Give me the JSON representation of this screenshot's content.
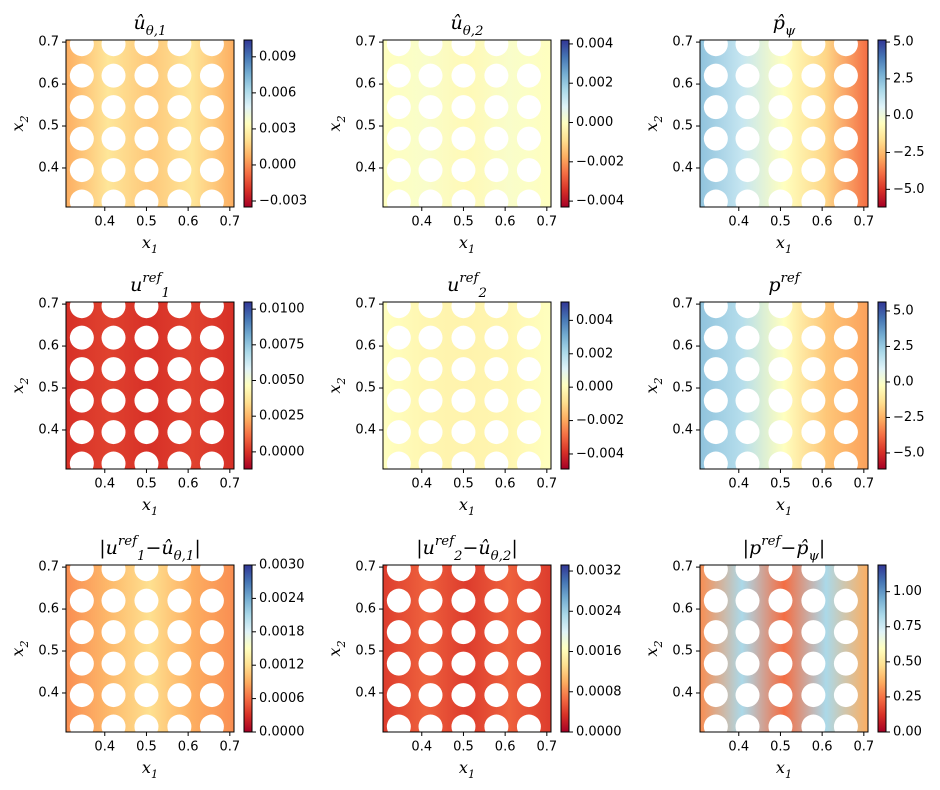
{
  "chart_data": [
    {
      "type": "heatmap",
      "colormap": "RdYlBu",
      "title": [
        {
          "text": "û"
        },
        {
          "text": "θ,1",
          "style": "sub"
        }
      ],
      "xlabel": [
        {
          "text": "x"
        },
        {
          "text": "1",
          "style": "sub"
        }
      ],
      "ylabel": [
        {
          "text": "x"
        },
        {
          "text": "2",
          "style": "sub"
        }
      ],
      "xlim": [
        0.307,
        0.71
      ],
      "ylim": [
        0.307,
        0.705
      ],
      "xticks": [
        0.4,
        0.5,
        0.6,
        0.7
      ],
      "yticks": [
        0.4,
        0.5,
        0.6,
        0.7
      ],
      "clim": [
        -0.0035,
        0.0104
      ],
      "cticks": [
        {
          "value": -0.003,
          "label": "−0.003"
        },
        {
          "value": 0,
          "label": "0.000"
        },
        0.003,
        0.006,
        0.009
      ]
    },
    {
      "type": "heatmap",
      "colormap": "RdYlBu",
      "title": [
        {
          "text": "û"
        },
        {
          "text": "θ,2",
          "style": "sub"
        }
      ],
      "xlabel": [
        {
          "text": "x"
        },
        {
          "text": "1",
          "style": "sub"
        }
      ],
      "ylabel": [
        {
          "text": "x"
        },
        {
          "text": "2",
          "style": "sub"
        }
      ],
      "xlim": [
        0.307,
        0.71
      ],
      "ylim": [
        0.307,
        0.705
      ],
      "xticks": [
        0.4,
        0.5,
        0.6,
        0.7
      ],
      "yticks": [
        0.4,
        0.5,
        0.6,
        0.7
      ],
      "clim": [
        -0.0043,
        0.0042
      ],
      "cticks": [
        {
          "value": -0.004,
          "label": "−0.004"
        },
        {
          "value": -0.002,
          "label": "−0.002"
        },
        {
          "value": 0,
          "label": "0.000"
        },
        0.002,
        0.004
      ]
    },
    {
      "type": "heatmap",
      "colormap": "RdYlBu",
      "title": [
        {
          "text": "p̂"
        },
        {
          "text": "ψ",
          "style": "sub"
        }
      ],
      "xlabel": [
        {
          "text": "x"
        },
        {
          "text": "1",
          "style": "sub"
        }
      ],
      "ylabel": [
        {
          "text": "x"
        },
        {
          "text": "2",
          "style": "sub"
        }
      ],
      "xlim": [
        0.307,
        0.71
      ],
      "ylim": [
        0.307,
        0.705
      ],
      "xticks": [
        0.4,
        0.5,
        0.6,
        0.7
      ],
      "yticks": [
        0.4,
        0.5,
        0.6,
        0.7
      ],
      "clim": [
        -6.2,
        5.14
      ],
      "cticks": [
        {
          "value": -5,
          "label": "−5.0"
        },
        {
          "value": -2.5,
          "label": "−2.5"
        },
        {
          "value": 0,
          "label": "0.0"
        },
        2.5,
        {
          "value": 5,
          "label": "5.0"
        }
      ]
    },
    {
      "type": "heatmap",
      "colormap": "RdYlBu",
      "title": [
        {
          "text": "u"
        },
        {
          "text": "ref",
          "style": "super"
        },
        {
          "text": "1",
          "style": "sub"
        }
      ],
      "xlabel": [
        {
          "text": "x"
        },
        {
          "text": "1",
          "style": "sub"
        }
      ],
      "ylabel": [
        {
          "text": "x"
        },
        {
          "text": "2",
          "style": "sub"
        }
      ],
      "xlim": [
        0.307,
        0.71
      ],
      "ylim": [
        0.307,
        0.705
      ],
      "xticks": [
        0.4,
        0.5,
        0.6,
        0.7
      ],
      "yticks": [
        0.4,
        0.5,
        0.6,
        0.7
      ],
      "clim": [
        -0.0012,
        0.0105
      ],
      "cticks": [
        {
          "value": 0,
          "label": "0.0000"
        },
        0.0025,
        {
          "value": 0.005,
          "label": "0.0050"
        },
        0.0075,
        {
          "value": 0.01,
          "label": "0.0100"
        }
      ]
    },
    {
      "type": "heatmap",
      "colormap": "RdYlBu",
      "title": [
        {
          "text": "u"
        },
        {
          "text": "ref",
          "style": "super"
        },
        {
          "text": "2",
          "style": "sub"
        }
      ],
      "xlabel": [
        {
          "text": "x"
        },
        {
          "text": "1",
          "style": "sub"
        }
      ],
      "ylabel": [
        {
          "text": "x"
        },
        {
          "text": "2",
          "style": "sub"
        }
      ],
      "xlim": [
        0.307,
        0.71
      ],
      "ylim": [
        0.307,
        0.705
      ],
      "xticks": [
        0.4,
        0.5,
        0.6,
        0.7
      ],
      "yticks": [
        0.4,
        0.5,
        0.6,
        0.7
      ],
      "clim": [
        -0.0049,
        0.0051
      ],
      "cticks": [
        {
          "value": -0.004,
          "label": "−0.004"
        },
        {
          "value": -0.002,
          "label": "−0.002"
        },
        {
          "value": 0,
          "label": "0.000"
        },
        0.002,
        0.004
      ]
    },
    {
      "type": "heatmap",
      "colormap": "RdYlBu",
      "title": [
        {
          "text": "p"
        },
        {
          "text": "ref",
          "style": "super"
        }
      ],
      "xlabel": [
        {
          "text": "x"
        },
        {
          "text": "1",
          "style": "sub"
        }
      ],
      "ylabel": [
        {
          "text": "x"
        },
        {
          "text": "2",
          "style": "sub"
        }
      ],
      "xlim": [
        0.307,
        0.71
      ],
      "ylim": [
        0.307,
        0.705
      ],
      "xticks": [
        0.4,
        0.5,
        0.6,
        0.7
      ],
      "yticks": [
        0.4,
        0.5,
        0.6,
        0.7
      ],
      "clim": [
        -6.13,
        5.63
      ],
      "cticks": [
        {
          "value": -5,
          "label": "−5.0"
        },
        {
          "value": -2.5,
          "label": "−2.5"
        },
        {
          "value": 0,
          "label": "0.0"
        },
        2.5,
        {
          "value": 5,
          "label": "5.0"
        }
      ]
    },
    {
      "type": "heatmap",
      "colormap": "RdYlBu",
      "title": [
        {
          "text": "|u"
        },
        {
          "text": "ref",
          "style": "super"
        },
        {
          "text": "1",
          "style": "sub"
        },
        {
          "text": "−û"
        },
        {
          "text": "θ,1",
          "style": "sub"
        },
        {
          "text": "|"
        }
      ],
      "xlabel": [
        {
          "text": "x"
        },
        {
          "text": "1",
          "style": "sub"
        }
      ],
      "ylabel": [
        {
          "text": "x"
        },
        {
          "text": "2",
          "style": "sub"
        }
      ],
      "xlim": [
        0.307,
        0.71
      ],
      "ylim": [
        0.307,
        0.705
      ],
      "xticks": [
        0.4,
        0.5,
        0.6,
        0.7
      ],
      "yticks": [
        0.4,
        0.5,
        0.6,
        0.7
      ],
      "clim": [
        0,
        0.003
      ],
      "cticks": [
        {
          "value": 0,
          "label": "0.0000"
        },
        0.0006,
        0.0012,
        0.0018,
        0.0024,
        {
          "value": 0.003,
          "label": "0.0030"
        }
      ]
    },
    {
      "type": "heatmap",
      "colormap": "RdYlBu",
      "title": [
        {
          "text": "|u"
        },
        {
          "text": "ref",
          "style": "super"
        },
        {
          "text": "2",
          "style": "sub"
        },
        {
          "text": "−û"
        },
        {
          "text": "θ,2",
          "style": "sub"
        },
        {
          "text": "|"
        }
      ],
      "xlabel": [
        {
          "text": "x"
        },
        {
          "text": "1",
          "style": "sub"
        }
      ],
      "ylabel": [
        {
          "text": "x"
        },
        {
          "text": "2",
          "style": "sub"
        }
      ],
      "xlim": [
        0.307,
        0.71
      ],
      "ylim": [
        0.307,
        0.705
      ],
      "xticks": [
        0.4,
        0.5,
        0.6,
        0.7
      ],
      "yticks": [
        0.4,
        0.5,
        0.6,
        0.7
      ],
      "clim": [
        0,
        0.00332
      ],
      "cticks": [
        {
          "value": 0,
          "label": "0.0000"
        },
        0.0008,
        0.0016,
        0.0024,
        0.0032
      ]
    },
    {
      "type": "heatmap",
      "colormap": "RdYlBu",
      "title": [
        {
          "text": "|p"
        },
        {
          "text": "ref",
          "style": "super"
        },
        {
          "text": "−p̂"
        },
        {
          "text": "ψ",
          "style": "sub"
        },
        {
          "text": "|"
        }
      ],
      "xlabel": [
        {
          "text": "x"
        },
        {
          "text": "1",
          "style": "sub"
        }
      ],
      "ylabel": [
        {
          "text": "x"
        },
        {
          "text": "2",
          "style": "sub"
        }
      ],
      "xlim": [
        0.307,
        0.71
      ],
      "ylim": [
        0.307,
        0.705
      ],
      "xticks": [
        0.4,
        0.5,
        0.6,
        0.7
      ],
      "yticks": [
        0.4,
        0.5,
        0.6,
        0.7
      ],
      "clim": [
        0,
        1.19
      ],
      "cticks": [
        {
          "value": 0,
          "label": "0.00"
        },
        0.25,
        {
          "value": 0.5,
          "label": "0.50"
        },
        0.75,
        {
          "value": 1,
          "label": "1.00"
        }
      ]
    }
  ]
}
